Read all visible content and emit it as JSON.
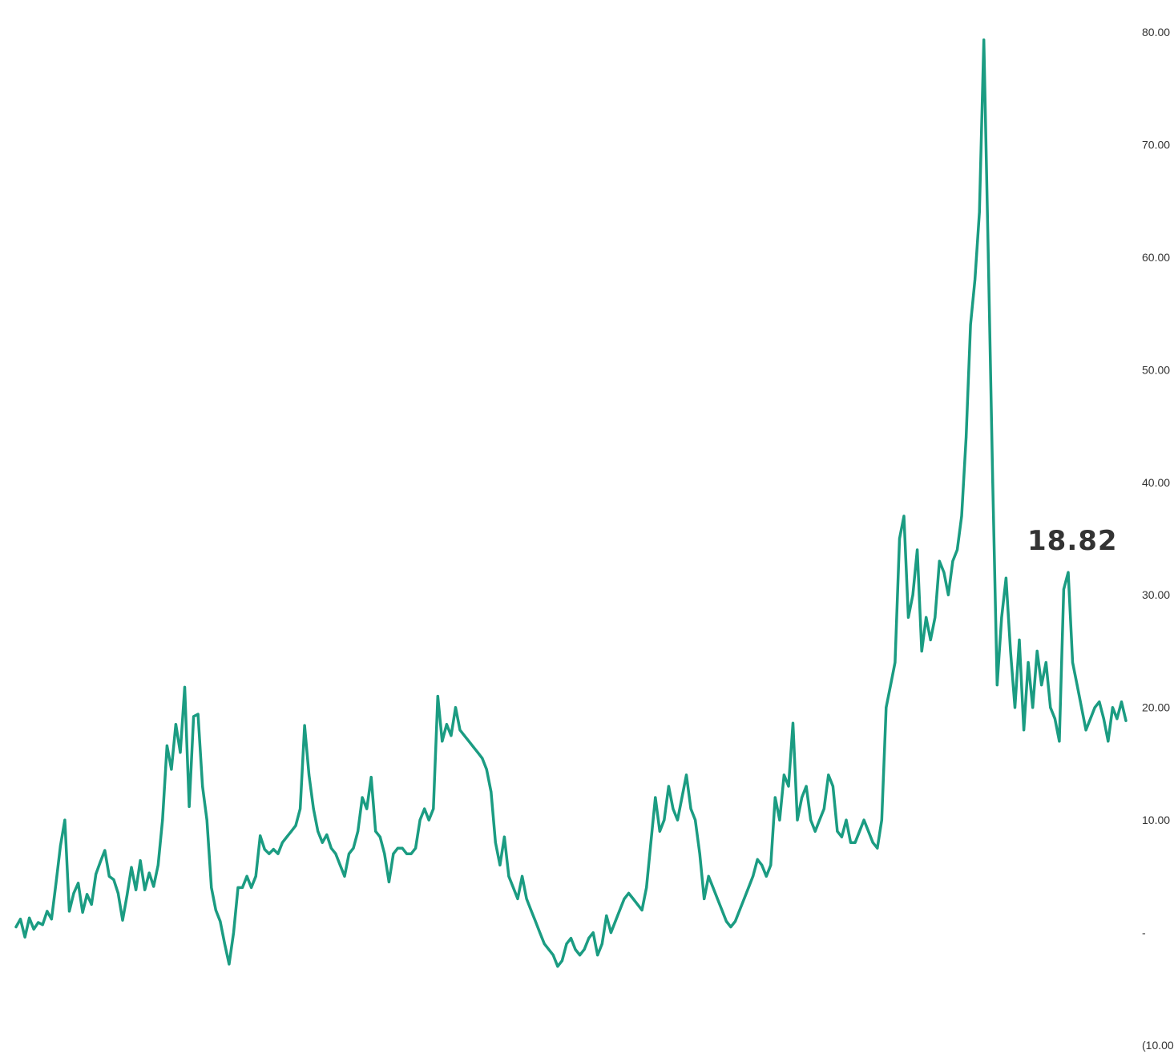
{
  "chart_data": {
    "type": "line",
    "title": "",
    "xlabel": "",
    "ylabel": "",
    "ylim": [
      -10,
      80
    ],
    "yticks": [
      80,
      70,
      60,
      50,
      40,
      30,
      20,
      10,
      0,
      -10
    ],
    "ytick_labels": [
      "80.00",
      "70.00",
      "60.00",
      "50.00",
      "40.00",
      "30.00",
      "20.00",
      "10.00",
      "-",
      "(10.00)"
    ],
    "y_axis_position": "right",
    "grid": false,
    "legend": "none",
    "line_color": "#1b9c82",
    "last_value_label": "18.82",
    "series": [
      {
        "values": [
          0.5,
          1.2,
          -0.4,
          1.3,
          0.3,
          0.9,
          0.7,
          1.9,
          1.2,
          4.4,
          7.7,
          10.0,
          1.9,
          3.5,
          4.4,
          1.8,
          3.4,
          2.5,
          5.2,
          6.3,
          7.3,
          5.0,
          4.7,
          3.5,
          1.1,
          3.3,
          5.8,
          3.8,
          6.4,
          3.8,
          5.3,
          4.1,
          6.0,
          10.0,
          16.6,
          14.5,
          18.5,
          16.0,
          21.8,
          11.2,
          19.2,
          19.4,
          13.0,
          10.0,
          4.0,
          2.0,
          1.0,
          -1.0,
          -2.8,
          0.0,
          4.0,
          4.0,
          5.0,
          4.0,
          5.0,
          8.6,
          7.4,
          7.0,
          7.4,
          7.0,
          8.0,
          8.5,
          9.0,
          9.5,
          11.0,
          18.4,
          14.0,
          11.0,
          9.0,
          8.0,
          8.7,
          7.5,
          7.0,
          6.0,
          5.0,
          7.0,
          7.5,
          9.0,
          12.0,
          11.0,
          13.8,
          9.0,
          8.5,
          7.0,
          4.5,
          7.0,
          7.5,
          7.5,
          7.0,
          7.0,
          7.5,
          10.0,
          11.0,
          10.0,
          11.0,
          21.0,
          17.0,
          18.5,
          17.5,
          20.0,
          18.0,
          17.5,
          17.0,
          16.5,
          16.0,
          15.5,
          14.5,
          12.5,
          8.0,
          6.0,
          8.5,
          5.0,
          4.0,
          3.0,
          5.0,
          3.0,
          2.0,
          1.0,
          0.0,
          -1.0,
          -1.5,
          -2.0,
          -3.0,
          -2.5,
          -1.0,
          -0.5,
          -1.5,
          -2.0,
          -1.5,
          -0.5,
          0.0,
          -2.0,
          -1.0,
          1.5,
          0.0,
          1.0,
          2.0,
          3.0,
          3.5,
          3.0,
          2.5,
          2.0,
          4.0,
          8.0,
          12.0,
          9.0,
          10.0,
          13.0,
          11.0,
          10.0,
          12.0,
          14.0,
          11.0,
          10.0,
          7.0,
          3.0,
          5.0,
          4.0,
          3.0,
          2.0,
          1.0,
          0.5,
          1.0,
          2.0,
          3.0,
          4.0,
          5.0,
          6.5,
          6.0,
          5.0,
          6.0,
          12.0,
          10.0,
          14.0,
          13.0,
          18.6,
          10.0,
          12.0,
          13.0,
          10.0,
          9.0,
          10.0,
          11.0,
          14.0,
          13.0,
          9.0,
          8.5,
          10.0,
          8.0,
          8.0,
          9.0,
          10.0,
          9.0,
          8.0,
          7.5,
          10.0,
          20.0,
          22.0,
          24.0,
          35.0,
          37.0,
          28.0,
          30.0,
          34.0,
          25.0,
          28.0,
          26.0,
          28.0,
          33.0,
          32.0,
          30.0,
          33.0,
          34.0,
          37.0,
          44.0,
          54.0,
          58.0,
          64.0,
          79.3,
          60.0,
          40.0,
          22.0,
          28.0,
          31.5,
          25.0,
          20.0,
          26.0,
          18.0,
          24.0,
          20.0,
          25.0,
          22.0,
          24.0,
          20.0,
          19.0,
          17.0,
          30.5,
          32.0,
          24.0,
          22.0,
          20.0,
          18.0,
          19.0,
          20.0,
          20.5,
          19.0,
          17.0,
          20.0,
          19.0,
          20.5,
          18.82
        ]
      }
    ]
  }
}
